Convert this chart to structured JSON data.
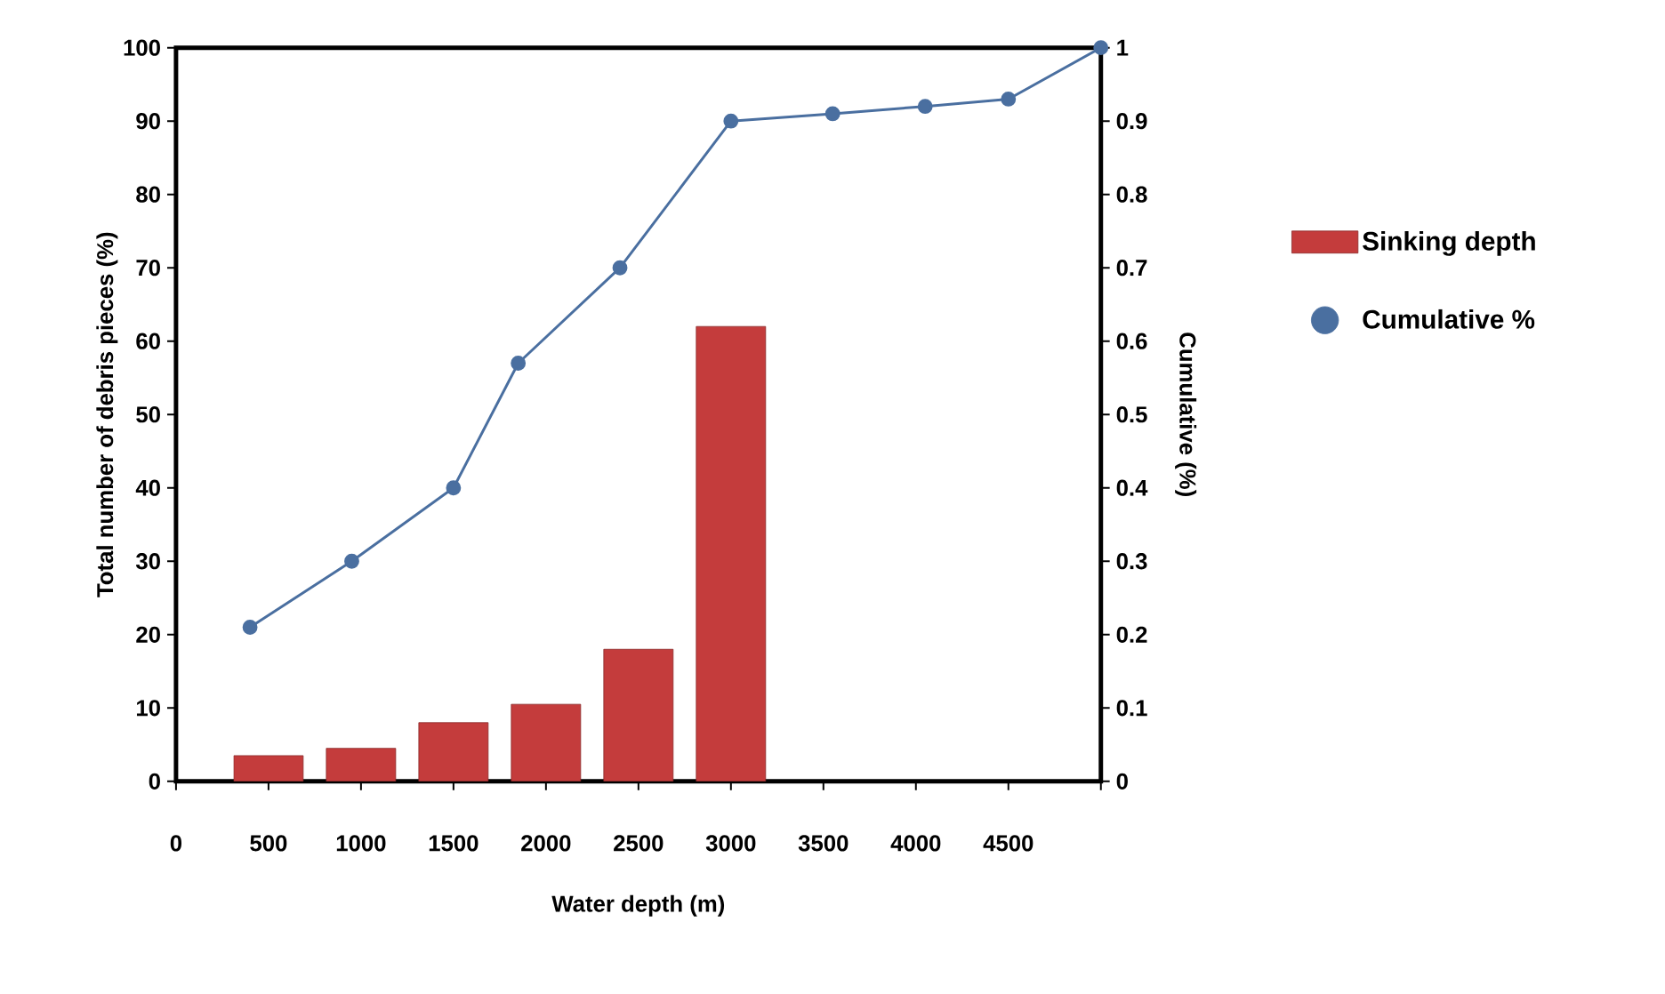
{
  "chart_data": {
    "type": "bar",
    "xlabel": "Water depth (m)",
    "ylabel": "Total number of debris pieces (%)",
    "y2label": "Cumulative   (%)",
    "series": [
      {
        "name": "Sinking depth",
        "color": "#c43c3c",
        "x": [
          500,
          1000,
          1500,
          2000,
          2500,
          3000
        ],
        "values": [
          3.5,
          4.5,
          8,
          10.5,
          18,
          62
        ]
      },
      {
        "name": "Cumulative %",
        "type": "line",
        "axis": "y2",
        "color": "#4a6fa0",
        "x": [
          400,
          950,
          1500,
          1850,
          2400,
          3000,
          3550,
          4050,
          4500,
          5000
        ],
        "values": [
          0.21,
          0.3,
          0.4,
          0.57,
          0.7,
          0.9,
          0.91,
          0.92,
          0.93,
          1.0
        ]
      }
    ],
    "xlim": [
      0,
      5000
    ],
    "xticks": [
      0,
      500,
      1000,
      1500,
      2000,
      2500,
      3000,
      3500,
      4000,
      4500,
      {
        "value": 5000,
        "label": null
      }
    ],
    "ylim": [
      0,
      100
    ],
    "yticks": [
      0,
      10,
      20,
      30,
      40,
      50,
      60,
      70,
      80,
      90,
      100
    ],
    "y2lim": [
      0,
      1
    ],
    "y2ticks": [
      0,
      0.1,
      0.2,
      0.3,
      0.4,
      0.5,
      0.6,
      0.7,
      0.8,
      0.9,
      1
    ],
    "marker": "circle",
    "line_style": "solid",
    "legend": "right"
  }
}
